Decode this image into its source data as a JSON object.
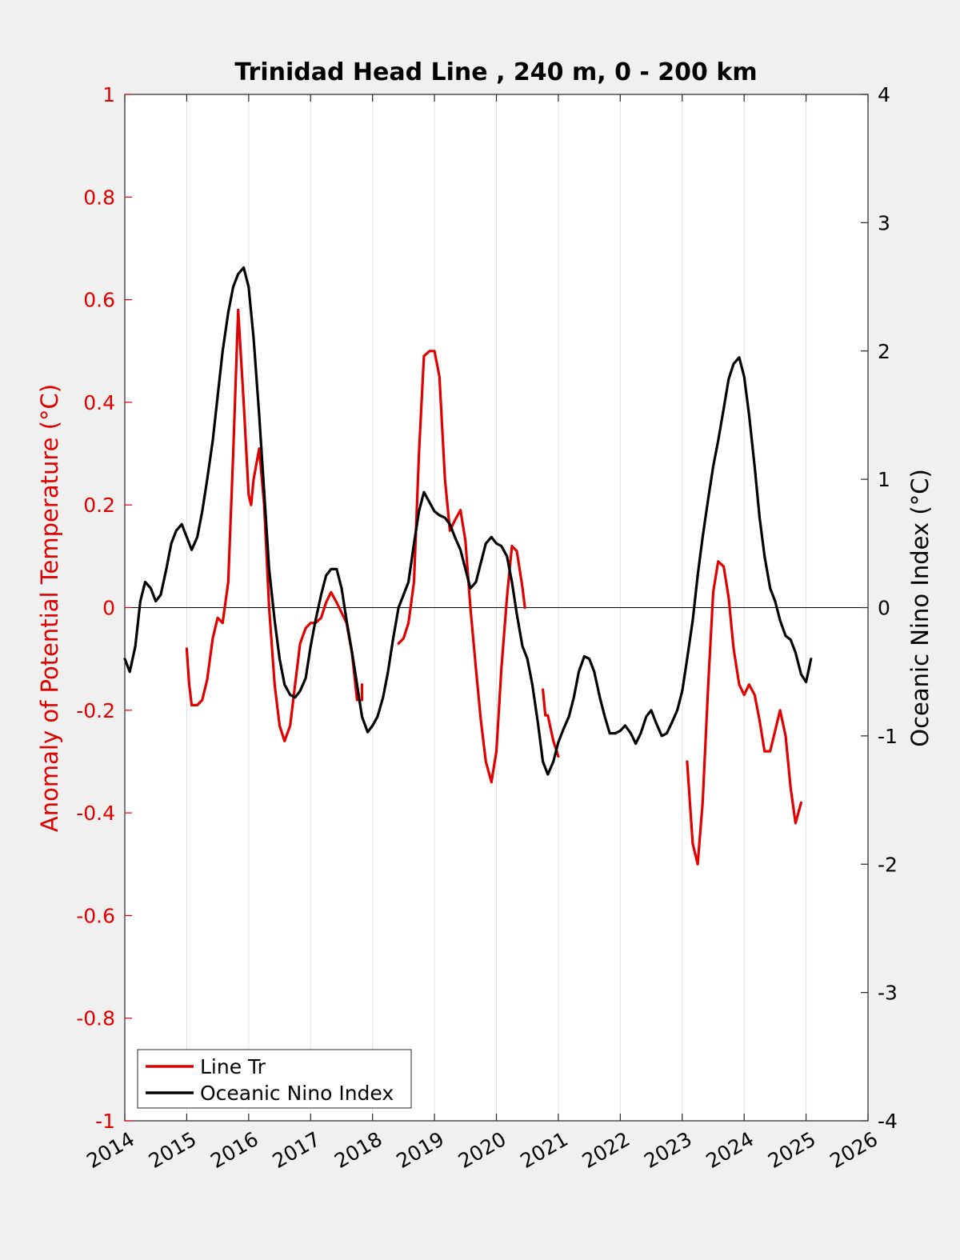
{
  "chart_data": {
    "type": "line",
    "title": "Trinidad Head Line , 240 m, 0 - 200 km",
    "xlabel": "",
    "ylabel_left": "Anomaly of Potential Temperature (°C)",
    "ylabel_right": "Oceanic Nino Index (°C)",
    "xlim": [
      2014,
      2026
    ],
    "ylim_left": [
      -1,
      1
    ],
    "ylim_right": [
      -4,
      4
    ],
    "x_ticks": [
      2014,
      2015,
      2016,
      2017,
      2018,
      2019,
      2020,
      2021,
      2022,
      2023,
      2024,
      2025,
      2026
    ],
    "x_tick_labels": [
      "2014",
      "2015",
      "2016",
      "2017",
      "2018",
      "2019",
      "2020",
      "2021",
      "2022",
      "2023",
      "2024",
      "2025",
      "2026"
    ],
    "y_left_ticks": [
      1,
      0.8,
      0.6,
      0.4,
      0.2,
      0,
      -0.2,
      -0.4,
      -0.6,
      -0.8,
      -1
    ],
    "y_left_tick_labels": [
      "1",
      "0.8",
      "0.6",
      "0.4",
      "0.2",
      "0",
      "-0.2",
      "-0.4",
      "-0.6",
      "-0.8",
      "-1"
    ],
    "y_right_ticks": [
      4,
      3,
      2,
      1,
      0,
      -1,
      -2,
      -3,
      -4
    ],
    "y_right_tick_labels": [
      "4",
      "3",
      "2",
      "1",
      "0",
      "-1",
      "-2",
      "-3",
      "-4"
    ],
    "grid": "vertical",
    "zero_line": true,
    "legend_position": "bottom-left",
    "series": [
      {
        "name": "Line Tr",
        "axis": "left",
        "color": "#e00000",
        "segments": [
          [
            [
              2015.0,
              -0.08
            ],
            [
              2015.04,
              -0.15
            ],
            [
              2015.08,
              -0.19
            ],
            [
              2015.17,
              -0.19
            ],
            [
              2015.25,
              -0.18
            ],
            [
              2015.33,
              -0.14
            ],
            [
              2015.42,
              -0.06
            ],
            [
              2015.5,
              -0.02
            ],
            [
              2015.58,
              -0.03
            ],
            [
              2015.67,
              0.05
            ],
            [
              2015.75,
              0.3
            ],
            [
              2015.83,
              0.58
            ],
            [
              2015.92,
              0.4
            ],
            [
              2016.0,
              0.22
            ],
            [
              2016.04,
              0.2
            ],
            [
              2016.08,
              0.25
            ],
            [
              2016.17,
              0.31
            ],
            [
              2016.25,
              0.2
            ],
            [
              2016.33,
              0.0
            ],
            [
              2016.42,
              -0.15
            ],
            [
              2016.5,
              -0.23
            ],
            [
              2016.58,
              -0.26
            ],
            [
              2016.67,
              -0.23
            ],
            [
              2016.75,
              -0.15
            ],
            [
              2016.83,
              -0.07
            ],
            [
              2016.92,
              -0.04
            ],
            [
              2017.0,
              -0.03
            ],
            [
              2017.08,
              -0.03
            ],
            [
              2017.17,
              -0.02
            ],
            [
              2017.25,
              0.01
            ],
            [
              2017.33,
              0.03
            ],
            [
              2017.42,
              0.01
            ],
            [
              2017.5,
              -0.01
            ],
            [
              2017.58,
              -0.03
            ],
            [
              2017.67,
              -0.09
            ],
            [
              2017.75,
              -0.18
            ]
          ],
          [
            [
              2017.83,
              -0.15
            ],
            [
              2017.83,
              -0.18
            ]
          ],
          [
            [
              2018.42,
              -0.07
            ],
            [
              2018.5,
              -0.06
            ],
            [
              2018.58,
              -0.03
            ],
            [
              2018.67,
              0.05
            ],
            [
              2018.75,
              0.3
            ],
            [
              2018.83,
              0.49
            ],
            [
              2018.92,
              0.5
            ],
            [
              2019.0,
              0.5
            ],
            [
              2019.08,
              0.45
            ],
            [
              2019.17,
              0.25
            ],
            [
              2019.25,
              0.15
            ],
            [
              2019.33,
              0.17
            ],
            [
              2019.42,
              0.19
            ],
            [
              2019.5,
              0.13
            ],
            [
              2019.58,
              0.0
            ],
            [
              2019.67,
              -0.12
            ],
            [
              2019.75,
              -0.22
            ],
            [
              2019.83,
              -0.3
            ],
            [
              2019.92,
              -0.34
            ],
            [
              2020.0,
              -0.28
            ],
            [
              2020.08,
              -0.12
            ],
            [
              2020.17,
              0.02
            ],
            [
              2020.25,
              0.12
            ],
            [
              2020.33,
              0.11
            ],
            [
              2020.42,
              0.04
            ],
            [
              2020.46,
              0.0
            ]
          ],
          [
            [
              2020.75,
              -0.16
            ],
            [
              2020.79,
              -0.21
            ],
            [
              2020.83,
              -0.21
            ],
            [
              2020.92,
              -0.26
            ],
            [
              2021.0,
              -0.29
            ]
          ],
          [
            [
              2023.08,
              -0.3
            ],
            [
              2023.17,
              -0.46
            ],
            [
              2023.25,
              -0.5
            ],
            [
              2023.33,
              -0.38
            ],
            [
              2023.42,
              -0.15
            ],
            [
              2023.5,
              0.03
            ],
            [
              2023.58,
              0.09
            ],
            [
              2023.67,
              0.08
            ],
            [
              2023.75,
              0.02
            ],
            [
              2023.83,
              -0.08
            ],
            [
              2023.92,
              -0.15
            ],
            [
              2024.0,
              -0.17
            ],
            [
              2024.08,
              -0.15
            ],
            [
              2024.17,
              -0.17
            ],
            [
              2024.25,
              -0.22
            ],
            [
              2024.33,
              -0.28
            ],
            [
              2024.42,
              -0.28
            ],
            [
              2024.5,
              -0.24
            ],
            [
              2024.58,
              -0.2
            ],
            [
              2024.67,
              -0.25
            ],
            [
              2024.75,
              -0.35
            ],
            [
              2024.83,
              -0.42
            ],
            [
              2024.92,
              -0.38
            ]
          ]
        ]
      },
      {
        "name": "Oceanic Nino Index",
        "axis": "right",
        "color": "#000000",
        "segments": [
          [
            [
              2014.0,
              -0.4
            ],
            [
              2014.08,
              -0.5
            ],
            [
              2014.17,
              -0.3
            ],
            [
              2014.25,
              0.05
            ],
            [
              2014.33,
              0.2
            ],
            [
              2014.42,
              0.15
            ],
            [
              2014.5,
              0.05
            ],
            [
              2014.58,
              0.1
            ],
            [
              2014.67,
              0.3
            ],
            [
              2014.75,
              0.5
            ],
            [
              2014.83,
              0.6
            ],
            [
              2014.92,
              0.65
            ],
            [
              2015.0,
              0.55
            ],
            [
              2015.08,
              0.45
            ],
            [
              2015.17,
              0.55
            ],
            [
              2015.25,
              0.75
            ],
            [
              2015.33,
              1.0
            ],
            [
              2015.42,
              1.3
            ],
            [
              2015.5,
              1.65
            ],
            [
              2015.58,
              2.0
            ],
            [
              2015.67,
              2.3
            ],
            [
              2015.75,
              2.5
            ],
            [
              2015.83,
              2.6
            ],
            [
              2015.92,
              2.65
            ],
            [
              2016.0,
              2.5
            ],
            [
              2016.08,
              2.1
            ],
            [
              2016.17,
              1.5
            ],
            [
              2016.25,
              0.9
            ],
            [
              2016.33,
              0.3
            ],
            [
              2016.42,
              -0.1
            ],
            [
              2016.5,
              -0.4
            ],
            [
              2016.58,
              -0.6
            ],
            [
              2016.67,
              -0.68
            ],
            [
              2016.75,
              -0.7
            ],
            [
              2016.83,
              -0.65
            ],
            [
              2016.92,
              -0.55
            ],
            [
              2017.0,
              -0.3
            ],
            [
              2017.08,
              -0.1
            ],
            [
              2017.17,
              0.1
            ],
            [
              2017.25,
              0.25
            ],
            [
              2017.33,
              0.3
            ],
            [
              2017.42,
              0.3
            ],
            [
              2017.5,
              0.15
            ],
            [
              2017.58,
              -0.1
            ],
            [
              2017.67,
              -0.35
            ],
            [
              2017.75,
              -0.6
            ],
            [
              2017.83,
              -0.85
            ],
            [
              2017.92,
              -0.97
            ],
            [
              2018.0,
              -0.92
            ],
            [
              2018.08,
              -0.85
            ],
            [
              2018.17,
              -0.7
            ],
            [
              2018.25,
              -0.5
            ],
            [
              2018.33,
              -0.25
            ],
            [
              2018.42,
              0.0
            ],
            [
              2018.5,
              0.1
            ],
            [
              2018.58,
              0.2
            ],
            [
              2018.67,
              0.5
            ],
            [
              2018.75,
              0.75
            ],
            [
              2018.83,
              0.9
            ],
            [
              2018.92,
              0.82
            ],
            [
              2019.0,
              0.75
            ],
            [
              2019.08,
              0.72
            ],
            [
              2019.17,
              0.7
            ],
            [
              2019.25,
              0.65
            ],
            [
              2019.33,
              0.55
            ],
            [
              2019.42,
              0.45
            ],
            [
              2019.5,
              0.3
            ],
            [
              2019.58,
              0.15
            ],
            [
              2019.67,
              0.2
            ],
            [
              2019.75,
              0.35
            ],
            [
              2019.83,
              0.5
            ],
            [
              2019.92,
              0.55
            ],
            [
              2020.0,
              0.5
            ],
            [
              2020.08,
              0.48
            ],
            [
              2020.17,
              0.4
            ],
            [
              2020.25,
              0.2
            ],
            [
              2020.33,
              -0.05
            ],
            [
              2020.42,
              -0.3
            ],
            [
              2020.5,
              -0.4
            ],
            [
              2020.58,
              -0.6
            ],
            [
              2020.67,
              -0.9
            ],
            [
              2020.75,
              -1.2
            ],
            [
              2020.83,
              -1.3
            ],
            [
              2020.92,
              -1.2
            ],
            [
              2021.0,
              -1.05
            ],
            [
              2021.08,
              -0.95
            ],
            [
              2021.17,
              -0.85
            ],
            [
              2021.25,
              -0.7
            ],
            [
              2021.33,
              -0.5
            ],
            [
              2021.42,
              -0.38
            ],
            [
              2021.5,
              -0.4
            ],
            [
              2021.58,
              -0.5
            ],
            [
              2021.67,
              -0.7
            ],
            [
              2021.75,
              -0.85
            ],
            [
              2021.83,
              -0.98
            ],
            [
              2021.92,
              -0.98
            ],
            [
              2022.0,
              -0.96
            ],
            [
              2022.08,
              -0.92
            ],
            [
              2022.17,
              -0.98
            ],
            [
              2022.25,
              -1.06
            ],
            [
              2022.33,
              -0.98
            ],
            [
              2022.42,
              -0.85
            ],
            [
              2022.5,
              -0.8
            ],
            [
              2022.58,
              -0.9
            ],
            [
              2022.67,
              -1.0
            ],
            [
              2022.75,
              -0.98
            ],
            [
              2022.83,
              -0.9
            ],
            [
              2022.92,
              -0.8
            ],
            [
              2023.0,
              -0.65
            ],
            [
              2023.08,
              -0.4
            ],
            [
              2023.17,
              -0.1
            ],
            [
              2023.25,
              0.25
            ],
            [
              2023.33,
              0.55
            ],
            [
              2023.42,
              0.85
            ],
            [
              2023.5,
              1.1
            ],
            [
              2023.58,
              1.3
            ],
            [
              2023.67,
              1.55
            ],
            [
              2023.75,
              1.78
            ],
            [
              2023.83,
              1.9
            ],
            [
              2023.92,
              1.95
            ],
            [
              2024.0,
              1.8
            ],
            [
              2024.08,
              1.5
            ],
            [
              2024.17,
              1.1
            ],
            [
              2024.25,
              0.7
            ],
            [
              2024.33,
              0.4
            ],
            [
              2024.42,
              0.15
            ],
            [
              2024.5,
              0.05
            ],
            [
              2024.58,
              -0.1
            ],
            [
              2024.67,
              -0.22
            ],
            [
              2024.75,
              -0.25
            ],
            [
              2024.83,
              -0.35
            ],
            [
              2024.92,
              -0.52
            ],
            [
              2025.0,
              -0.58
            ],
            [
              2025.08,
              -0.4
            ]
          ]
        ]
      }
    ]
  }
}
